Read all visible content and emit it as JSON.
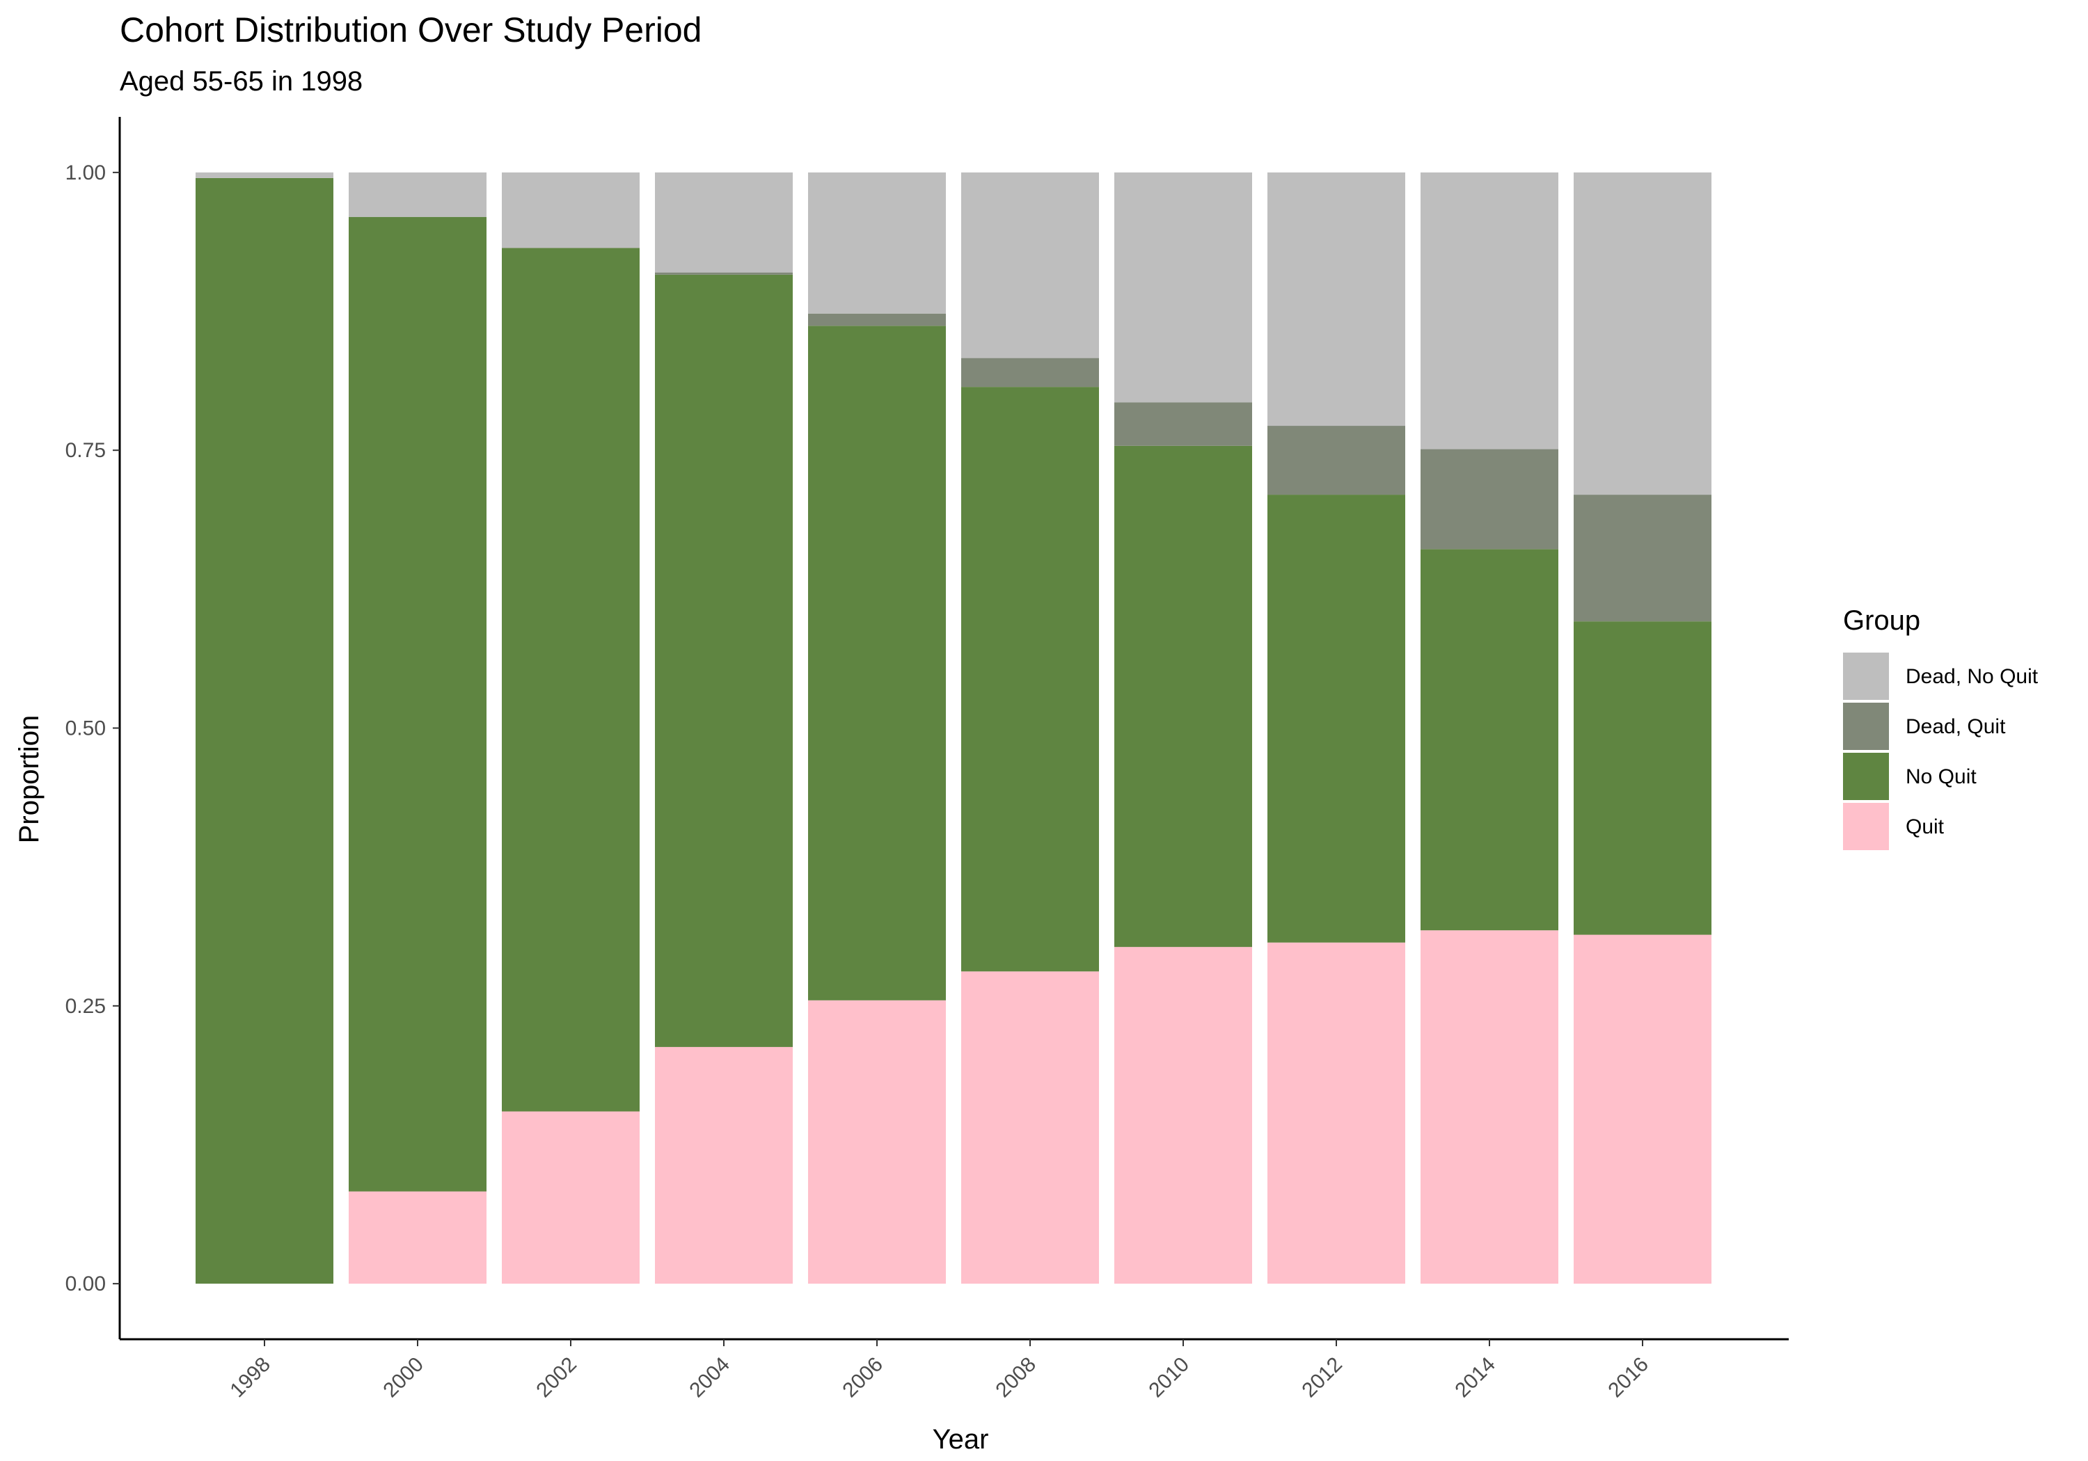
{
  "chart_data": {
    "type": "bar",
    "stacked": true,
    "title": "Cohort Distribution Over Study Period",
    "subtitle": "Aged 55-65 in 1998",
    "xlabel": "Year",
    "ylabel": "Proportion",
    "categories": [
      "1998",
      "2000",
      "2002",
      "2004",
      "2006",
      "2008",
      "2010",
      "2012",
      "2014",
      "2016"
    ],
    "ylim": [
      -0.05,
      1.05
    ],
    "yticks": [
      "0.00",
      "0.25",
      "0.50",
      "0.75",
      "1.00"
    ],
    "grid": false,
    "legend": {
      "title": "Group",
      "position": "right"
    },
    "series": [
      {
        "name": "Quit",
        "color": "#FFC0CB",
        "values": [
          0.0,
          0.083,
          0.155,
          0.213,
          0.255,
          0.281,
          0.303,
          0.307,
          0.318,
          0.314
        ]
      },
      {
        "name": "No Quit",
        "color": "#5F8541",
        "values": [
          0.995,
          0.877,
          0.777,
          0.695,
          0.607,
          0.526,
          0.451,
          0.403,
          0.343,
          0.282
        ]
      },
      {
        "name": "Dead, Quit",
        "color": "#808878",
        "values": [
          0.0,
          0.0,
          0.0,
          0.002,
          0.011,
          0.026,
          0.039,
          0.062,
          0.09,
          0.114
        ]
      },
      {
        "name": "Dead, No Quit",
        "color": "#BEBEBE",
        "values": [
          0.005,
          0.04,
          0.068,
          0.09,
          0.127,
          0.167,
          0.207,
          0.228,
          0.249,
          0.29
        ]
      }
    ],
    "legend_order": [
      "Dead, No Quit",
      "Dead, Quit",
      "No Quit",
      "Quit"
    ]
  }
}
